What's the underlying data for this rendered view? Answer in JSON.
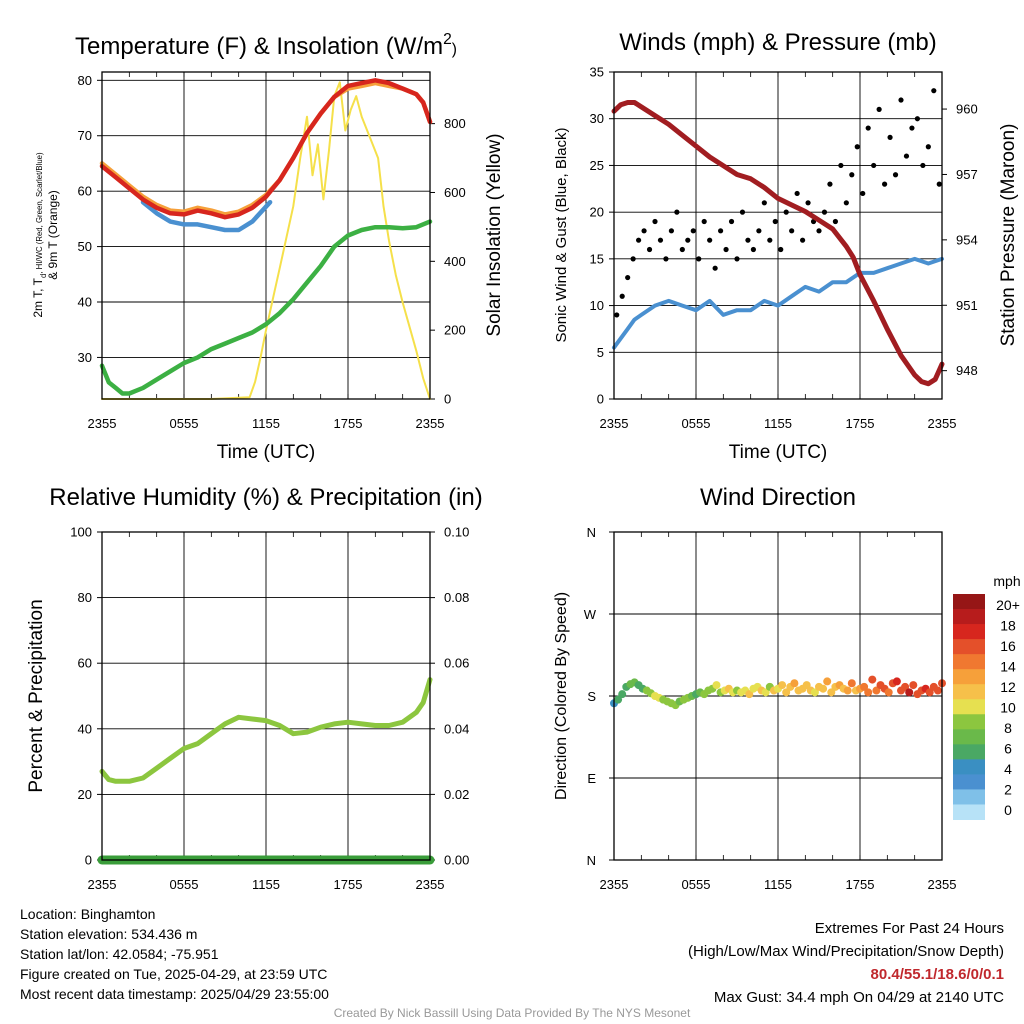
{
  "chart_data": [
    {
      "id": "temperature",
      "type": "line",
      "title": "Temperature (F) & Insolation (W/m",
      "title_superscript": "2",
      "title_suffix": ")",
      "ylabel": "2m T, T",
      "ylabel_subscript": "d",
      "ylabel_rest": ", HI/WC (Red, Green, Scarlet/Blue)",
      "ylabel_line2": "& 9m T (Orange)",
      "y2label": "Solar Insolation (Yellow)",
      "xlabel": "Time (UTC)",
      "xticks": [
        "2355",
        "0555",
        "1155",
        "1755",
        "2355"
      ],
      "ylim": [
        22.5,
        81.5
      ],
      "yticks": [
        30,
        40,
        50,
        60,
        70,
        80
      ],
      "y2lim": [
        0,
        950
      ],
      "y2ticks": [
        0,
        200,
        400,
        600,
        800
      ],
      "x_unit": "hours",
      "series": [
        {
          "name": "2m T",
          "color": "#d7261e",
          "axis": "left",
          "x": [
            0,
            1,
            2,
            3,
            4,
            5,
            6,
            7,
            8,
            9,
            10,
            11,
            12,
            13,
            14,
            15,
            16,
            17,
            18,
            19,
            20,
            21,
            22,
            23,
            23.5,
            24
          ],
          "y": [
            64.5,
            62.5,
            60.5,
            58.5,
            57,
            56,
            55.8,
            56.5,
            56,
            55.3,
            55.8,
            57,
            59,
            62,
            66,
            70.5,
            74,
            77,
            79,
            79.5,
            80,
            79.5,
            78.5,
            77.5,
            76,
            72.5
          ]
        },
        {
          "name": "9m T",
          "color": "#f6a03a",
          "axis": "left",
          "x": [
            0,
            1,
            2,
            3,
            4,
            5,
            6,
            7,
            8,
            9,
            10,
            11,
            12,
            13,
            14,
            15,
            16,
            17,
            18,
            19,
            20,
            21,
            22,
            23,
            23.5,
            24
          ],
          "y": [
            65,
            63,
            61,
            59,
            57.5,
            56.5,
            56.3,
            57,
            56.5,
            55.8,
            56.3,
            57.5,
            59.3,
            62,
            66,
            70.5,
            74,
            77,
            78.5,
            79,
            79.5,
            79,
            78.5,
            77.5,
            76,
            72.5
          ]
        },
        {
          "name": "Wind Chill",
          "color": "#4a90d0",
          "axis": "left",
          "x": [
            3,
            4,
            5,
            6,
            7,
            8,
            9,
            10,
            11,
            12.3
          ],
          "y": [
            58,
            56,
            54.5,
            54,
            54,
            53.5,
            53,
            53,
            54.5,
            58
          ]
        },
        {
          "name": "Td",
          "color": "#3cb043",
          "axis": "left",
          "x": [
            0,
            0.5,
            1,
            1.5,
            2,
            2.5,
            3,
            4,
            5,
            6,
            7,
            8,
            9,
            10,
            11,
            12,
            13,
            14,
            15,
            16,
            17,
            18,
            19,
            20,
            21,
            22,
            23,
            24
          ],
          "y": [
            28.5,
            25.5,
            24.5,
            23.5,
            23.5,
            24,
            24.5,
            26,
            27.5,
            29,
            30,
            31.5,
            32.5,
            33.5,
            34.5,
            36,
            38,
            40.5,
            43.5,
            46.5,
            50,
            52,
            53,
            53.5,
            53.5,
            53.3,
            53.5,
            54.5
          ]
        },
        {
          "name": "Solar Insolation",
          "color": "#f5e04a",
          "axis": "right",
          "x": [
            0,
            5,
            8,
            10.8,
            11.2,
            11.6,
            12,
            12.5,
            13,
            13.5,
            14,
            14.5,
            15,
            15.4,
            15.8,
            16.2,
            16.6,
            17,
            17.4,
            17.8,
            18.2,
            18.6,
            19,
            19.6,
            20.2,
            20.6,
            21,
            21.5,
            22,
            22.5,
            23,
            23.5,
            24
          ],
          "y": [
            0,
            0,
            0,
            5,
            50,
            120,
            200,
            290,
            380,
            470,
            560,
            700,
            820,
            650,
            740,
            580,
            720,
            880,
            920,
            780,
            840,
            880,
            820,
            760,
            700,
            560,
            460,
            360,
            280,
            210,
            140,
            60,
            0
          ]
        }
      ]
    },
    {
      "id": "winds",
      "type": "line",
      "title": "Winds (mph) & Pressure (mb)",
      "ylabel": "Sonic Wind & Gust (Blue, Black)",
      "y2label": "Station Pressure (Maroon)",
      "xlabel": "Time (UTC)",
      "xticks": [
        "2355",
        "0555",
        "1155",
        "1755",
        "2355"
      ],
      "ylim": [
        0,
        35
      ],
      "yticks": [
        0,
        5,
        10,
        15,
        20,
        25,
        30,
        35
      ],
      "y2lim": [
        946.7,
        961.7
      ],
      "y2ticks": [
        948,
        951,
        954,
        957,
        960
      ],
      "series": [
        {
          "name": "Sonic Wind",
          "color": "#4a90d0",
          "axis": "left",
          "x": [
            0,
            0.5,
            1,
            1.5,
            2,
            3,
            4,
            5,
            6,
            7,
            8,
            9,
            10,
            11,
            12,
            13,
            14,
            15,
            16,
            17,
            18,
            19,
            20,
            21,
            22,
            23,
            24
          ],
          "y": [
            5.5,
            6.5,
            7.5,
            8.5,
            9,
            10,
            10.5,
            10,
            9.5,
            10.5,
            9,
            9.5,
            9.5,
            10.5,
            10,
            11,
            12,
            11.5,
            12.5,
            12.5,
            13.5,
            13.5,
            14,
            14.5,
            15,
            14.5,
            15
          ]
        },
        {
          "name": "Station Pressure",
          "color": "#a11d21",
          "axis": "right",
          "x": [
            0,
            0.5,
            1,
            1.5,
            2,
            3,
            4,
            5,
            6,
            7,
            8,
            9,
            10,
            11,
            12,
            13,
            14,
            15,
            16,
            17,
            17.5,
            18,
            19,
            20,
            21,
            22,
            22.5,
            23,
            23.5,
            24
          ],
          "y": [
            959.9,
            960.2,
            960.3,
            960.3,
            960.1,
            959.7,
            959.3,
            958.8,
            958.3,
            957.8,
            957.4,
            957.0,
            956.8,
            956.4,
            955.9,
            955.6,
            955.3,
            954.9,
            954.5,
            953.7,
            953.2,
            952.4,
            951.2,
            949.9,
            948.7,
            947.8,
            947.5,
            947.4,
            947.6,
            948.3
          ]
        },
        {
          "name": "Gust",
          "color": "#000000",
          "axis": "left",
          "render": "points",
          "x": [
            0.2,
            0.6,
            1.0,
            1.4,
            1.8,
            2.2,
            2.6,
            3.0,
            3.4,
            3.8,
            4.2,
            4.6,
            5.0,
            5.4,
            5.8,
            6.2,
            6.6,
            7.0,
            7.4,
            7.8,
            8.2,
            8.6,
            9.0,
            9.4,
            9.8,
            10.2,
            10.6,
            11.0,
            11.4,
            11.8,
            12.2,
            12.6,
            13.0,
            13.4,
            13.8,
            14.2,
            14.6,
            15.0,
            15.4,
            15.8,
            16.2,
            16.6,
            17.0,
            17.4,
            17.8,
            18.2,
            18.6,
            19.0,
            19.4,
            19.8,
            20.2,
            20.6,
            21.0,
            21.4,
            21.8,
            22.2,
            22.6,
            23.0,
            23.4,
            23.8
          ],
          "y": [
            9,
            11,
            13,
            15,
            17,
            18,
            16,
            19,
            17,
            15,
            18,
            20,
            16,
            17,
            18,
            15,
            19,
            17,
            14,
            18,
            16,
            19,
            15,
            20,
            17,
            16,
            18,
            21,
            17,
            19,
            16,
            20,
            18,
            22,
            17,
            21,
            19,
            18,
            20,
            23,
            19,
            25,
            21,
            24,
            27,
            22,
            29,
            25,
            31,
            23,
            28,
            24,
            32,
            26,
            29,
            30,
            25,
            27,
            33,
            23
          ]
        }
      ]
    },
    {
      "id": "humidity",
      "type": "line",
      "title": "Relative Humidity (%) & Precipitation (in)",
      "ylabel": "Percent & Precipitation",
      "xlabel": "",
      "xticks": [
        "2355",
        "0555",
        "1155",
        "1755",
        "2355"
      ],
      "ylim": [
        0,
        100
      ],
      "yticks": [
        0,
        20,
        40,
        60,
        80,
        100
      ],
      "y2lim": [
        0,
        0.1
      ],
      "y2ticks": [
        "0.00",
        "0.02",
        "0.04",
        "0.06",
        "0.08",
        "0.10"
      ],
      "series": [
        {
          "name": "Relative Humidity",
          "color": "#8cc63f",
          "axis": "left",
          "x": [
            0,
            0.5,
            1,
            2,
            3,
            4,
            5,
            6,
            7,
            8,
            9,
            10,
            11,
            12,
            13,
            14,
            15,
            16,
            17,
            18,
            19,
            20,
            21,
            22,
            23,
            23.5,
            24
          ],
          "y": [
            27,
            24.5,
            24,
            24,
            25,
            28,
            31,
            34,
            35.5,
            38.5,
            41.5,
            43.5,
            43,
            42.5,
            41,
            38.5,
            39,
            40.5,
            41.5,
            42,
            41.5,
            41,
            41,
            42,
            45,
            48,
            55
          ]
        },
        {
          "name": "Precipitation",
          "color": "#3a9d3a",
          "axis": "right",
          "x": [
            0,
            24
          ],
          "y": [
            0,
            0
          ]
        }
      ]
    },
    {
      "id": "direction",
      "type": "scatter",
      "title": "Wind Direction",
      "ylabel": "Direction (Colored By Speed)",
      "xlabel": "",
      "xticks": [
        "2355",
        "0555",
        "1155",
        "1755",
        "2355"
      ],
      "yticks": [
        "N",
        "E",
        "S",
        "W",
        "N"
      ],
      "ylim": [
        0,
        360
      ],
      "legend_title": "mph",
      "legend_labels": [
        "20+",
        "18",
        "16",
        "14",
        "12",
        "10",
        "8",
        "6",
        "4",
        "2",
        "0"
      ],
      "colorscale": [
        "#b7e2f7",
        "#7fc0e8",
        "#4a90d0",
        "#3a8fc2",
        "#4aa864",
        "#6ab94a",
        "#8cc63f",
        "#e6e050",
        "#f6c04a",
        "#f6a03a",
        "#f07830",
        "#e4502a",
        "#d7261e",
        "#b71c1c",
        "#961616"
      ],
      "points": {
        "x": [
          0,
          0.3,
          0.6,
          0.9,
          1.2,
          1.5,
          1.8,
          2.1,
          2.4,
          2.7,
          3.0,
          3.3,
          3.6,
          3.9,
          4.2,
          4.5,
          4.8,
          5.1,
          5.4,
          5.7,
          6.0,
          6.3,
          6.6,
          6.9,
          7.2,
          7.5,
          7.8,
          8.1,
          8.4,
          8.7,
          9.0,
          9.3,
          9.6,
          9.9,
          10.2,
          10.5,
          10.8,
          11.1,
          11.4,
          11.7,
          12.0,
          12.3,
          12.6,
          12.9,
          13.2,
          13.5,
          13.8,
          14.1,
          14.4,
          14.7,
          15.0,
          15.3,
          15.6,
          15.9,
          16.2,
          16.5,
          16.8,
          17.1,
          17.4,
          17.7,
          18.0,
          18.3,
          18.6,
          18.9,
          19.2,
          19.5,
          19.8,
          20.1,
          20.4,
          20.7,
          21.0,
          21.3,
          21.6,
          21.9,
          22.2,
          22.5,
          22.8,
          23.1,
          23.4,
          23.7,
          24.0
        ],
        "dir": [
          172,
          176,
          182,
          190,
          193,
          195,
          192,
          188,
          186,
          183,
          180,
          178,
          176,
          174,
          172,
          170,
          174,
          176,
          178,
          180,
          182,
          184,
          182,
          186,
          188,
          192,
          184,
          186,
          188,
          184,
          186,
          184,
          186,
          182,
          188,
          190,
          186,
          184,
          190,
          186,
          188,
          192,
          184,
          190,
          194,
          186,
          188,
          192,
          186,
          184,
          190,
          188,
          196,
          184,
          190,
          192,
          188,
          186,
          194,
          186,
          188,
          190,
          184,
          198,
          186,
          192,
          188,
          184,
          194,
          196,
          186,
          190,
          184,
          192,
          182,
          186,
          188,
          184,
          190,
          186,
          194
        ],
        "speed": [
          4,
          5,
          6,
          6,
          7,
          7,
          6,
          6,
          8,
          9,
          10,
          10,
          9,
          8,
          9,
          8,
          7,
          8,
          8,
          7,
          6,
          7,
          8,
          9,
          9,
          10,
          9,
          10,
          11,
          10,
          9,
          10,
          10,
          11,
          10,
          10,
          11,
          10,
          9,
          11,
          10,
          12,
          11,
          12,
          13,
          11,
          12,
          12,
          11,
          10,
          12,
          11,
          13,
          12,
          12,
          13,
          12,
          13,
          14,
          12,
          13,
          14,
          14,
          15,
          14,
          15,
          16,
          14,
          15,
          17,
          16,
          15,
          18,
          16,
          15,
          16,
          17,
          16,
          15,
          15,
          16
        ]
      }
    }
  ],
  "location": "Location: Binghamton",
  "elevation": "Station elevation: 534.436 m",
  "latlon": "Station lat/lon: 42.0584; -75.951",
  "created": "Figure created on Tue, 2025-04-29, at 23:59 UTC",
  "recent": "Most recent data timestamp: 2025/04/29 23:55:00",
  "extremes_title": "Extremes For Past 24 Hours",
  "extremes_legend": "(High/Low/Max Wind/Precipitation/Snow Depth)",
  "extremes_values": "80.4/55.1/18.6/0/0.1",
  "max_gust": "Max Gust: 34.4 mph On 04/29 at 2140 UTC",
  "credit": "Created By Nick Bassill Using Data Provided By The NYS Mesonet"
}
